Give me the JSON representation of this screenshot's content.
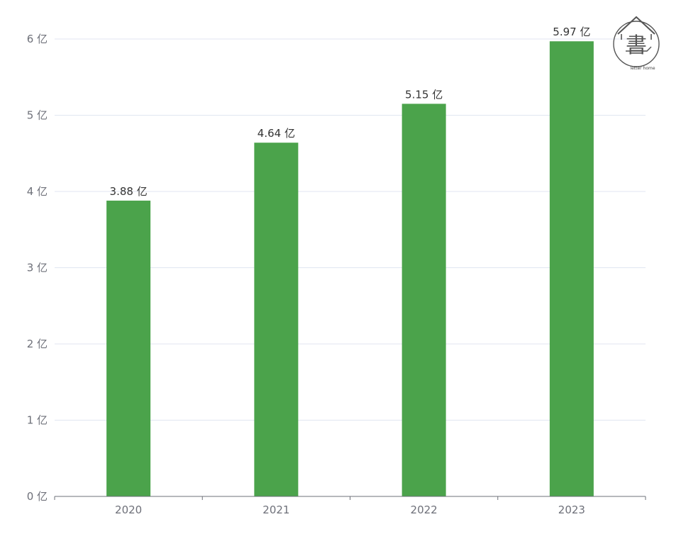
{
  "chart_data": {
    "type": "bar",
    "categories": [
      "2020",
      "2021",
      "2022",
      "2023"
    ],
    "values": [
      3.88,
      4.64,
      5.15,
      5.97
    ],
    "value_labels": [
      "3.88 亿",
      "4.64 亿",
      "5.15 亿",
      "5.97 亿"
    ],
    "title": "",
    "xlabel": "",
    "ylabel": "",
    "ylim": [
      0,
      6
    ],
    "y_ticks": [
      0,
      1,
      2,
      3,
      4,
      5,
      6
    ],
    "y_tick_labels": [
      "0 亿",
      "1 亿",
      "2 亿",
      "3 亿",
      "4 亿",
      "5 亿",
      "6 亿"
    ],
    "grid": true,
    "legend": "none"
  },
  "colors": {
    "bar": "#4ba34b",
    "grid": "#e0e6f1",
    "axis": "#6e7079"
  },
  "logo": {
    "icon": "house-book-logo-icon",
    "glyph": "書",
    "caption": "letter home"
  }
}
